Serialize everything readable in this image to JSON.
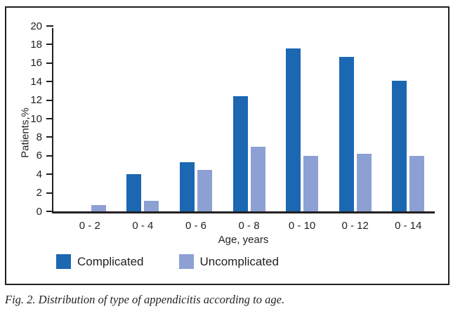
{
  "figure": {
    "caption": "Fig. 2. Distribution of type of appendicitis according to age."
  },
  "chart_data": {
    "type": "bar",
    "title": "",
    "xlabel": "Age, years",
    "ylabel": "Patients,%",
    "ylim": [
      0,
      20
    ],
    "ytick_step": 2,
    "grid": false,
    "legend_position": "bottom",
    "categories": [
      "0 - 2",
      "0 - 4",
      "0 - 6",
      "0 - 8",
      "0 - 10",
      "0 - 12",
      "0 - 14"
    ],
    "series": [
      {
        "name": "Complicated",
        "color": "#1b67b2",
        "values": [
          0,
          4.0,
          5.3,
          12.4,
          17.6,
          16.7,
          14.1
        ]
      },
      {
        "name": "Uncomplicated",
        "color": "#8ca0d3",
        "values": [
          0.7,
          1.1,
          4.5,
          7.0,
          6.0,
          6.2,
          6.0
        ]
      }
    ],
    "colors": {
      "axis": "#231f20",
      "text": "#231f20",
      "background": "#ffffff"
    }
  }
}
